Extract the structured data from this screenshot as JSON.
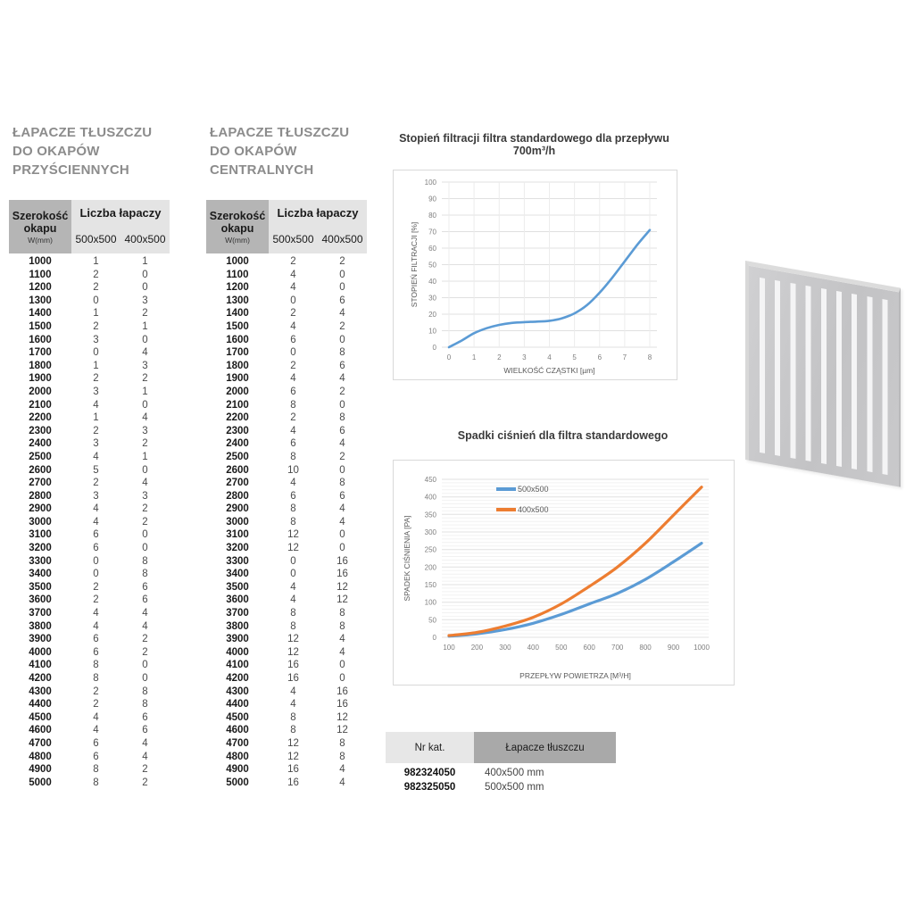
{
  "headings": {
    "wall": [
      "ŁAPACZE TŁUSZCZU",
      "DO OKAPÓW",
      "PRZYŚCIENNYCH"
    ],
    "central": [
      "ŁAPACZE TŁUSZCZU",
      "DO OKAPÓW",
      "CENTRALNYCH"
    ]
  },
  "table_header": {
    "col1_title": "Szerokość okapu",
    "col1_sub": "W(mm)",
    "group_title": "Liczba łapaczy",
    "col2": "500x500",
    "col3": "400x500"
  },
  "wall_table_rows": [
    [
      1000,
      1,
      1
    ],
    [
      1100,
      2,
      0
    ],
    [
      1200,
      2,
      0
    ],
    [
      1300,
      0,
      3
    ],
    [
      1400,
      1,
      2
    ],
    [
      1500,
      2,
      1
    ],
    [
      1600,
      3,
      0
    ],
    [
      1700,
      0,
      4
    ],
    [
      1800,
      1,
      3
    ],
    [
      1900,
      2,
      2
    ],
    [
      2000,
      3,
      1
    ],
    [
      2100,
      4,
      0
    ],
    [
      2200,
      1,
      4
    ],
    [
      2300,
      2,
      3
    ],
    [
      2400,
      3,
      2
    ],
    [
      2500,
      4,
      1
    ],
    [
      2600,
      5,
      0
    ],
    [
      2700,
      2,
      4
    ],
    [
      2800,
      3,
      3
    ],
    [
      2900,
      4,
      2
    ],
    [
      3000,
      4,
      2
    ],
    [
      3100,
      6,
      0
    ],
    [
      3200,
      6,
      0
    ],
    [
      3300,
      0,
      8
    ],
    [
      3400,
      0,
      8
    ],
    [
      3500,
      2,
      6
    ],
    [
      3600,
      2,
      6
    ],
    [
      3700,
      4,
      4
    ],
    [
      3800,
      4,
      4
    ],
    [
      3900,
      6,
      2
    ],
    [
      4000,
      6,
      2
    ],
    [
      4100,
      8,
      0
    ],
    [
      4200,
      8,
      0
    ],
    [
      4300,
      2,
      8
    ],
    [
      4400,
      2,
      8
    ],
    [
      4500,
      4,
      6
    ],
    [
      4600,
      4,
      6
    ],
    [
      4700,
      6,
      4
    ],
    [
      4800,
      6,
      4
    ],
    [
      4900,
      8,
      2
    ],
    [
      5000,
      8,
      2
    ]
  ],
  "central_table_rows": [
    [
      1000,
      2,
      2
    ],
    [
      1100,
      4,
      0
    ],
    [
      1200,
      4,
      0
    ],
    [
      1300,
      0,
      6
    ],
    [
      1400,
      2,
      4
    ],
    [
      1500,
      4,
      2
    ],
    [
      1600,
      6,
      0
    ],
    [
      1700,
      0,
      8
    ],
    [
      1800,
      2,
      6
    ],
    [
      1900,
      4,
      4
    ],
    [
      2000,
      6,
      2
    ],
    [
      2100,
      8,
      0
    ],
    [
      2200,
      2,
      8
    ],
    [
      2300,
      4,
      6
    ],
    [
      2400,
      6,
      4
    ],
    [
      2500,
      8,
      2
    ],
    [
      2600,
      10,
      0
    ],
    [
      2700,
      4,
      8
    ],
    [
      2800,
      6,
      6
    ],
    [
      2900,
      8,
      4
    ],
    [
      3000,
      8,
      4
    ],
    [
      3100,
      12,
      0
    ],
    [
      3200,
      12,
      0
    ],
    [
      3300,
      0,
      16
    ],
    [
      3400,
      0,
      16
    ],
    [
      3500,
      4,
      12
    ],
    [
      3600,
      4,
      12
    ],
    [
      3700,
      8,
      8
    ],
    [
      3800,
      8,
      8
    ],
    [
      3900,
      12,
      4
    ],
    [
      4000,
      12,
      4
    ],
    [
      4100,
      16,
      0
    ],
    [
      4200,
      16,
      0
    ],
    [
      4300,
      4,
      16
    ],
    [
      4400,
      4,
      16
    ],
    [
      4500,
      8,
      12
    ],
    [
      4600,
      8,
      12
    ],
    [
      4700,
      12,
      8
    ],
    [
      4800,
      12,
      8
    ],
    [
      4900,
      16,
      4
    ],
    [
      5000,
      16,
      4
    ]
  ],
  "chart_data": [
    {
      "type": "line",
      "title": "Stopień filtracji filtra standardowego dla przepływu 700m³/h",
      "xlabel": "WIELKOŚĆ CZĄSTKI [µm]",
      "ylabel": "STOPIEŃ FILTRACJI [%]",
      "xlim": [
        0,
        8
      ],
      "ylim": [
        0,
        100
      ],
      "xticks": [
        0,
        1,
        2,
        3,
        4,
        5,
        6,
        7,
        8
      ],
      "yticks": [
        0,
        10,
        20,
        30,
        40,
        50,
        60,
        70,
        80,
        90,
        100
      ],
      "grid": true,
      "legend": false,
      "series": [
        {
          "name": "",
          "color": "#5B9BD5",
          "x": [
            0,
            0.5,
            1,
            1.5,
            2,
            2.5,
            3,
            3.5,
            4,
            4.5,
            5,
            5.5,
            6,
            6.5,
            7,
            7.5,
            8
          ],
          "y": [
            0,
            4,
            8.5,
            11.5,
            13.5,
            14.7,
            15.2,
            15.5,
            16,
            17.5,
            20.5,
            25.5,
            33,
            42,
            52,
            62,
            71
          ]
        }
      ]
    },
    {
      "type": "line",
      "title": "Spadki ciśnień dla filtra standardowego",
      "xlabel": "PRZEPŁYW POWIETRZA [M³/H]",
      "ylabel": "SPADEK CIŚNIENIA [PA]",
      "xlim": [
        100,
        1000
      ],
      "ylim": [
        0,
        450
      ],
      "xticks": [
        100,
        200,
        300,
        400,
        500,
        600,
        700,
        800,
        900,
        1000
      ],
      "yticks": [
        0,
        50,
        100,
        150,
        200,
        250,
        300,
        350,
        400,
        450
      ],
      "grid": true,
      "legend": true,
      "legend_position": "top-left",
      "series": [
        {
          "name": "500x500",
          "color": "#5B9BD5",
          "x": [
            100,
            200,
            300,
            400,
            500,
            600,
            700,
            800,
            900,
            1000
          ],
          "y": [
            3,
            10,
            22,
            40,
            65,
            95,
            125,
            165,
            215,
            268
          ]
        },
        {
          "name": "400x500",
          "color": "#ED7D31",
          "x": [
            100,
            200,
            300,
            400,
            500,
            600,
            700,
            800,
            900,
            1000
          ],
          "y": [
            5,
            14,
            32,
            57,
            95,
            145,
            200,
            268,
            348,
            428
          ]
        }
      ]
    }
  ],
  "catalog_table": {
    "headers": [
      "Nr kat.",
      "Łapacze tłuszczu"
    ],
    "rows": [
      [
        "982324050",
        "400x500 mm"
      ],
      [
        "982325050",
        "500x500 mm"
      ]
    ]
  }
}
